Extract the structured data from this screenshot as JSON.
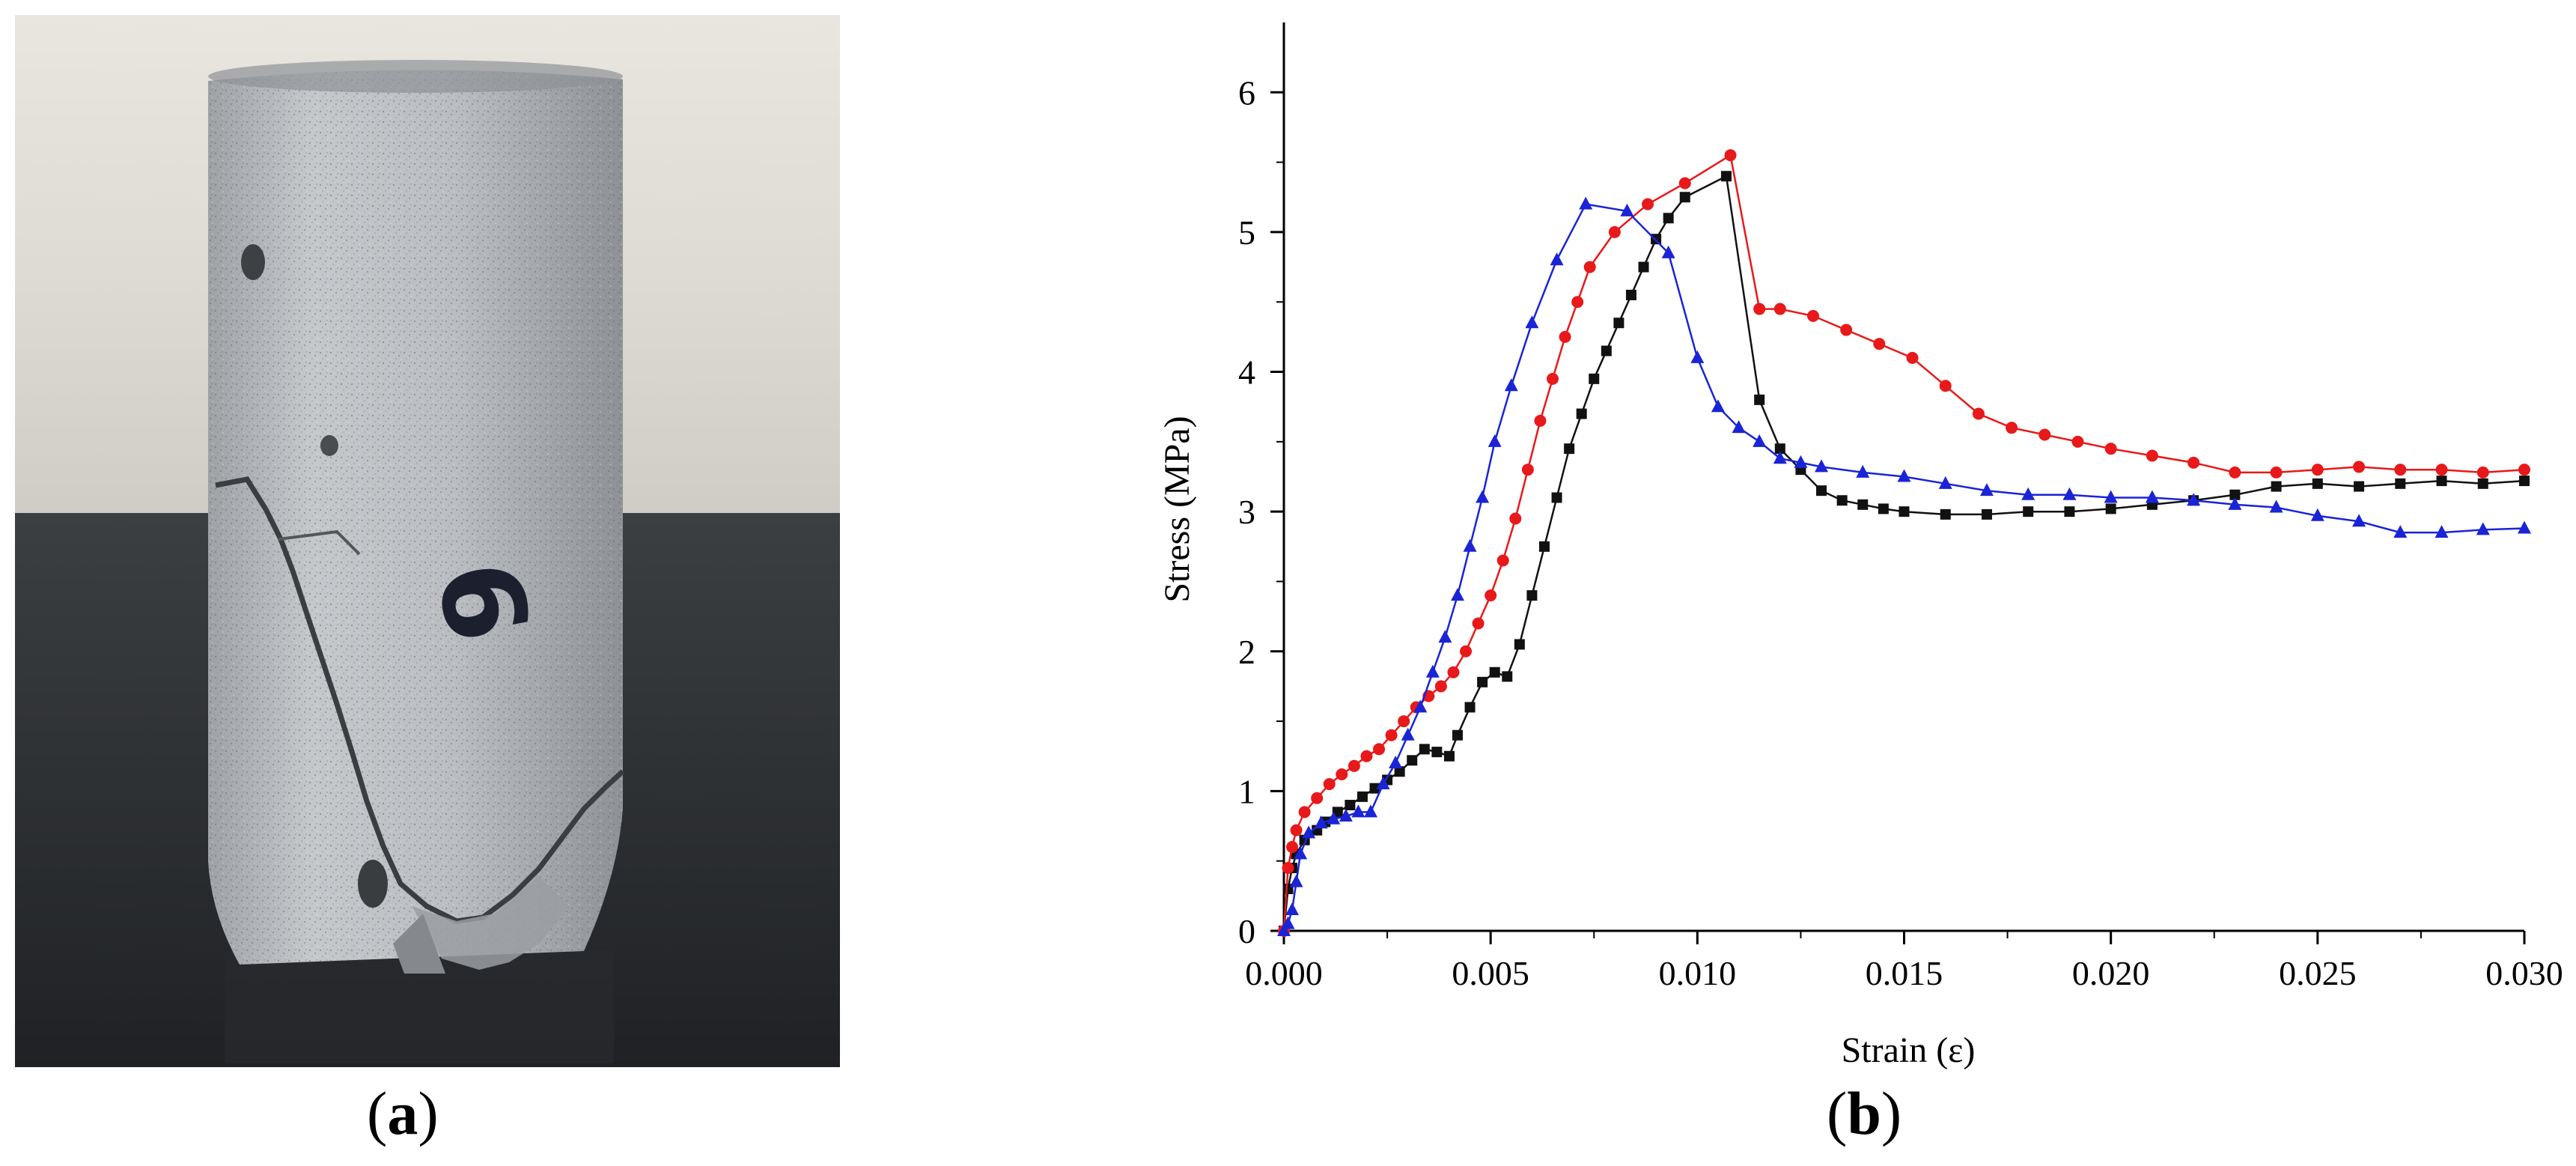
{
  "panels": {
    "a": {
      "label": "a",
      "photo_marking": "9"
    },
    "b": {
      "label": "b"
    }
  },
  "colors": {
    "black": "#111111",
    "red": "#e8191a",
    "blue": "#1a24d6"
  },
  "chart_data": {
    "type": "line",
    "xlabel": "Strain (ε)",
    "ylabel": "Stress (MPa)",
    "xlim": [
      0,
      0.03
    ],
    "ylim": [
      0,
      6.5
    ],
    "x_ticks": [
      0.0,
      0.005,
      0.01,
      0.015,
      0.02,
      0.025,
      0.03
    ],
    "x_tick_labels": [
      "0.000",
      "0.005",
      "0.010",
      "0.015",
      "0.020",
      "0.025",
      "0.030"
    ],
    "y_ticks": [
      0,
      1,
      2,
      3,
      4,
      5,
      6
    ],
    "y_tick_labels": [
      "0",
      "1",
      "2",
      "3",
      "4",
      "5",
      "6"
    ],
    "grid": false,
    "series": [
      {
        "name": "black-squares",
        "color": "#111111",
        "marker": "square",
        "points": [
          [
            0,
            0
          ],
          [
            0.0001,
            0.3
          ],
          [
            0.0002,
            0.45
          ],
          [
            0.0003,
            0.55
          ],
          [
            0.0005,
            0.65
          ],
          [
            0.0008,
            0.72
          ],
          [
            0.001,
            0.78
          ],
          [
            0.0013,
            0.85
          ],
          [
            0.0016,
            0.9
          ],
          [
            0.0019,
            0.96
          ],
          [
            0.0022,
            1.02
          ],
          [
            0.0025,
            1.08
          ],
          [
            0.0028,
            1.14
          ],
          [
            0.0031,
            1.22
          ],
          [
            0.0034,
            1.3
          ],
          [
            0.0037,
            1.28
          ],
          [
            0.004,
            1.25
          ],
          [
            0.0042,
            1.4
          ],
          [
            0.0045,
            1.6
          ],
          [
            0.0048,
            1.78
          ],
          [
            0.0051,
            1.85
          ],
          [
            0.0054,
            1.82
          ],
          [
            0.0057,
            2.05
          ],
          [
            0.006,
            2.4
          ],
          [
            0.0063,
            2.75
          ],
          [
            0.0066,
            3.1
          ],
          [
            0.0069,
            3.45
          ],
          [
            0.0072,
            3.7
          ],
          [
            0.0075,
            3.95
          ],
          [
            0.0078,
            4.15
          ],
          [
            0.0081,
            4.35
          ],
          [
            0.0084,
            4.55
          ],
          [
            0.0087,
            4.75
          ],
          [
            0.009,
            4.95
          ],
          [
            0.0093,
            5.1
          ],
          [
            0.0097,
            5.25
          ],
          [
            0.0107,
            5.4
          ],
          [
            0.0115,
            3.8
          ],
          [
            0.012,
            3.45
          ],
          [
            0.0125,
            3.3
          ],
          [
            0.013,
            3.15
          ],
          [
            0.0135,
            3.08
          ],
          [
            0.014,
            3.05
          ],
          [
            0.0145,
            3.02
          ],
          [
            0.015,
            3.0
          ],
          [
            0.016,
            2.98
          ],
          [
            0.017,
            2.98
          ],
          [
            0.018,
            3.0
          ],
          [
            0.019,
            3.0
          ],
          [
            0.02,
            3.02
          ],
          [
            0.021,
            3.05
          ],
          [
            0.022,
            3.08
          ],
          [
            0.023,
            3.12
          ],
          [
            0.024,
            3.18
          ],
          [
            0.025,
            3.2
          ],
          [
            0.026,
            3.18
          ],
          [
            0.027,
            3.2
          ],
          [
            0.028,
            3.22
          ],
          [
            0.029,
            3.2
          ],
          [
            0.03,
            3.22
          ]
        ]
      },
      {
        "name": "red-circles",
        "color": "#e8191a",
        "marker": "circle",
        "points": [
          [
            0,
            0
          ],
          [
            0.0001,
            0.45
          ],
          [
            0.0002,
            0.6
          ],
          [
            0.0003,
            0.72
          ],
          [
            0.0005,
            0.85
          ],
          [
            0.0008,
            0.95
          ],
          [
            0.0011,
            1.05
          ],
          [
            0.0014,
            1.12
          ],
          [
            0.0017,
            1.18
          ],
          [
            0.002,
            1.25
          ],
          [
            0.0023,
            1.3
          ],
          [
            0.0026,
            1.4
          ],
          [
            0.0029,
            1.5
          ],
          [
            0.0032,
            1.6
          ],
          [
            0.0035,
            1.68
          ],
          [
            0.0038,
            1.75
          ],
          [
            0.0041,
            1.85
          ],
          [
            0.0044,
            2.0
          ],
          [
            0.0047,
            2.2
          ],
          [
            0.005,
            2.4
          ],
          [
            0.0053,
            2.65
          ],
          [
            0.0056,
            2.95
          ],
          [
            0.0059,
            3.3
          ],
          [
            0.0062,
            3.65
          ],
          [
            0.0065,
            3.95
          ],
          [
            0.0068,
            4.25
          ],
          [
            0.0071,
            4.5
          ],
          [
            0.0074,
            4.75
          ],
          [
            0.008,
            5.0
          ],
          [
            0.0088,
            5.2
          ],
          [
            0.0097,
            5.35
          ],
          [
            0.0108,
            5.55
          ],
          [
            0.0115,
            4.45
          ],
          [
            0.012,
            4.45
          ],
          [
            0.0128,
            4.4
          ],
          [
            0.0136,
            4.3
          ],
          [
            0.0144,
            4.2
          ],
          [
            0.0152,
            4.1
          ],
          [
            0.016,
            3.9
          ],
          [
            0.0168,
            3.7
          ],
          [
            0.0176,
            3.6
          ],
          [
            0.0184,
            3.55
          ],
          [
            0.0192,
            3.5
          ],
          [
            0.02,
            3.45
          ],
          [
            0.021,
            3.4
          ],
          [
            0.022,
            3.35
          ],
          [
            0.023,
            3.28
          ],
          [
            0.024,
            3.28
          ],
          [
            0.025,
            3.3
          ],
          [
            0.026,
            3.32
          ],
          [
            0.027,
            3.3
          ],
          [
            0.028,
            3.3
          ],
          [
            0.029,
            3.28
          ],
          [
            0.03,
            3.3
          ]
        ]
      },
      {
        "name": "blue-triangles",
        "color": "#1a24d6",
        "marker": "triangle",
        "points": [
          [
            0,
            0
          ],
          [
            0.0001,
            0.05
          ],
          [
            0.0002,
            0.15
          ],
          [
            0.0003,
            0.35
          ],
          [
            0.0004,
            0.55
          ],
          [
            0.0006,
            0.7
          ],
          [
            0.0009,
            0.77
          ],
          [
            0.0012,
            0.8
          ],
          [
            0.0015,
            0.82
          ],
          [
            0.0018,
            0.85
          ],
          [
            0.0021,
            0.85
          ],
          [
            0.0024,
            1.05
          ],
          [
            0.0027,
            1.2
          ],
          [
            0.003,
            1.4
          ],
          [
            0.0033,
            1.6
          ],
          [
            0.0036,
            1.85
          ],
          [
            0.0039,
            2.1
          ],
          [
            0.0042,
            2.4
          ],
          [
            0.0045,
            2.75
          ],
          [
            0.0048,
            3.1
          ],
          [
            0.0051,
            3.5
          ],
          [
            0.0055,
            3.9
          ],
          [
            0.006,
            4.35
          ],
          [
            0.0066,
            4.8
          ],
          [
            0.0073,
            5.2
          ],
          [
            0.0083,
            5.15
          ],
          [
            0.0093,
            4.85
          ],
          [
            0.01,
            4.1
          ],
          [
            0.0105,
            3.75
          ],
          [
            0.011,
            3.6
          ],
          [
            0.0115,
            3.5
          ],
          [
            0.012,
            3.38
          ],
          [
            0.0125,
            3.35
          ],
          [
            0.013,
            3.32
          ],
          [
            0.014,
            3.28
          ],
          [
            0.015,
            3.25
          ],
          [
            0.016,
            3.2
          ],
          [
            0.017,
            3.15
          ],
          [
            0.018,
            3.12
          ],
          [
            0.019,
            3.12
          ],
          [
            0.02,
            3.1
          ],
          [
            0.021,
            3.1
          ],
          [
            0.022,
            3.08
          ],
          [
            0.023,
            3.05
          ],
          [
            0.024,
            3.03
          ],
          [
            0.025,
            2.97
          ],
          [
            0.026,
            2.93
          ],
          [
            0.027,
            2.85
          ],
          [
            0.028,
            2.85
          ],
          [
            0.029,
            2.87
          ],
          [
            0.03,
            2.88
          ]
        ]
      }
    ]
  }
}
